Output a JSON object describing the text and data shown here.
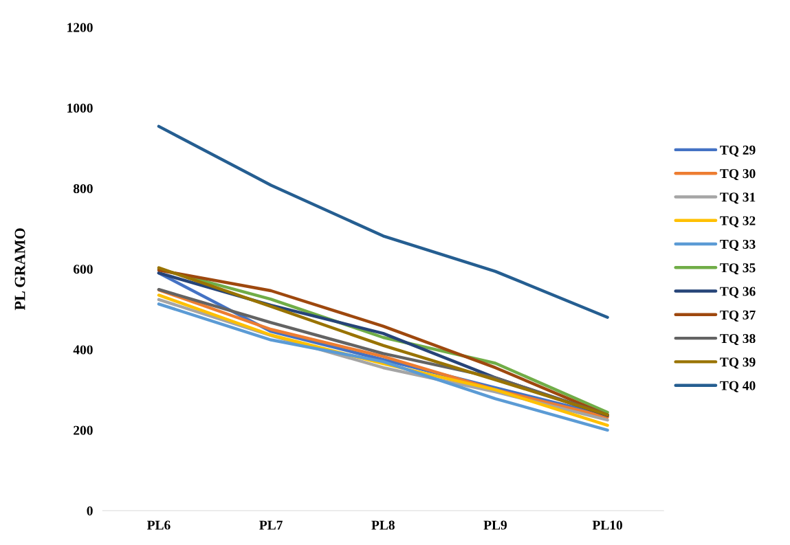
{
  "chart_data": {
    "type": "line",
    "ylabel": "PL GRAMO",
    "categories": [
      "PL6",
      "PL7",
      "PL8",
      "PL9",
      "PL10"
    ],
    "ylim": [
      0,
      1200
    ],
    "yticks": [
      0,
      200,
      400,
      600,
      800,
      1000,
      1200
    ],
    "grid": false,
    "legend": "right",
    "marker": "none",
    "line_style": "solid",
    "series": [
      {
        "name": "TQ 29",
        "color": "#4472c4",
        "values": [
          590,
          445,
          375,
          305,
          236
        ]
      },
      {
        "name": "TQ 30",
        "color": "#ed7d31",
        "values": [
          548,
          450,
          383,
          300,
          232
        ]
      },
      {
        "name": "TQ 31",
        "color": "#a5a5a5",
        "values": [
          524,
          435,
          355,
          295,
          225
        ]
      },
      {
        "name": "TQ 32",
        "color": "#ffc000",
        "values": [
          535,
          436,
          365,
          300,
          212
        ]
      },
      {
        "name": "TQ 33",
        "color": "#5b9bd5",
        "values": [
          513,
          424,
          370,
          278,
          200
        ]
      },
      {
        "name": "TQ 35",
        "color": "#70ad47",
        "values": [
          600,
          525,
          430,
          366,
          244
        ]
      },
      {
        "name": "TQ 36",
        "color": "#264478",
        "values": [
          590,
          510,
          440,
          330,
          236
        ]
      },
      {
        "name": "TQ 37",
        "color": "#9e480e",
        "values": [
          597,
          546,
          458,
          355,
          237
        ]
      },
      {
        "name": "TQ 38",
        "color": "#636363",
        "values": [
          549,
          467,
          390,
          330,
          238
        ]
      },
      {
        "name": "TQ 39",
        "color": "#997300",
        "values": [
          603,
          507,
          410,
          325,
          238
        ]
      },
      {
        "name": "TQ 40",
        "color": "#255e91",
        "values": [
          954,
          808,
          682,
          594,
          480
        ]
      }
    ]
  }
}
